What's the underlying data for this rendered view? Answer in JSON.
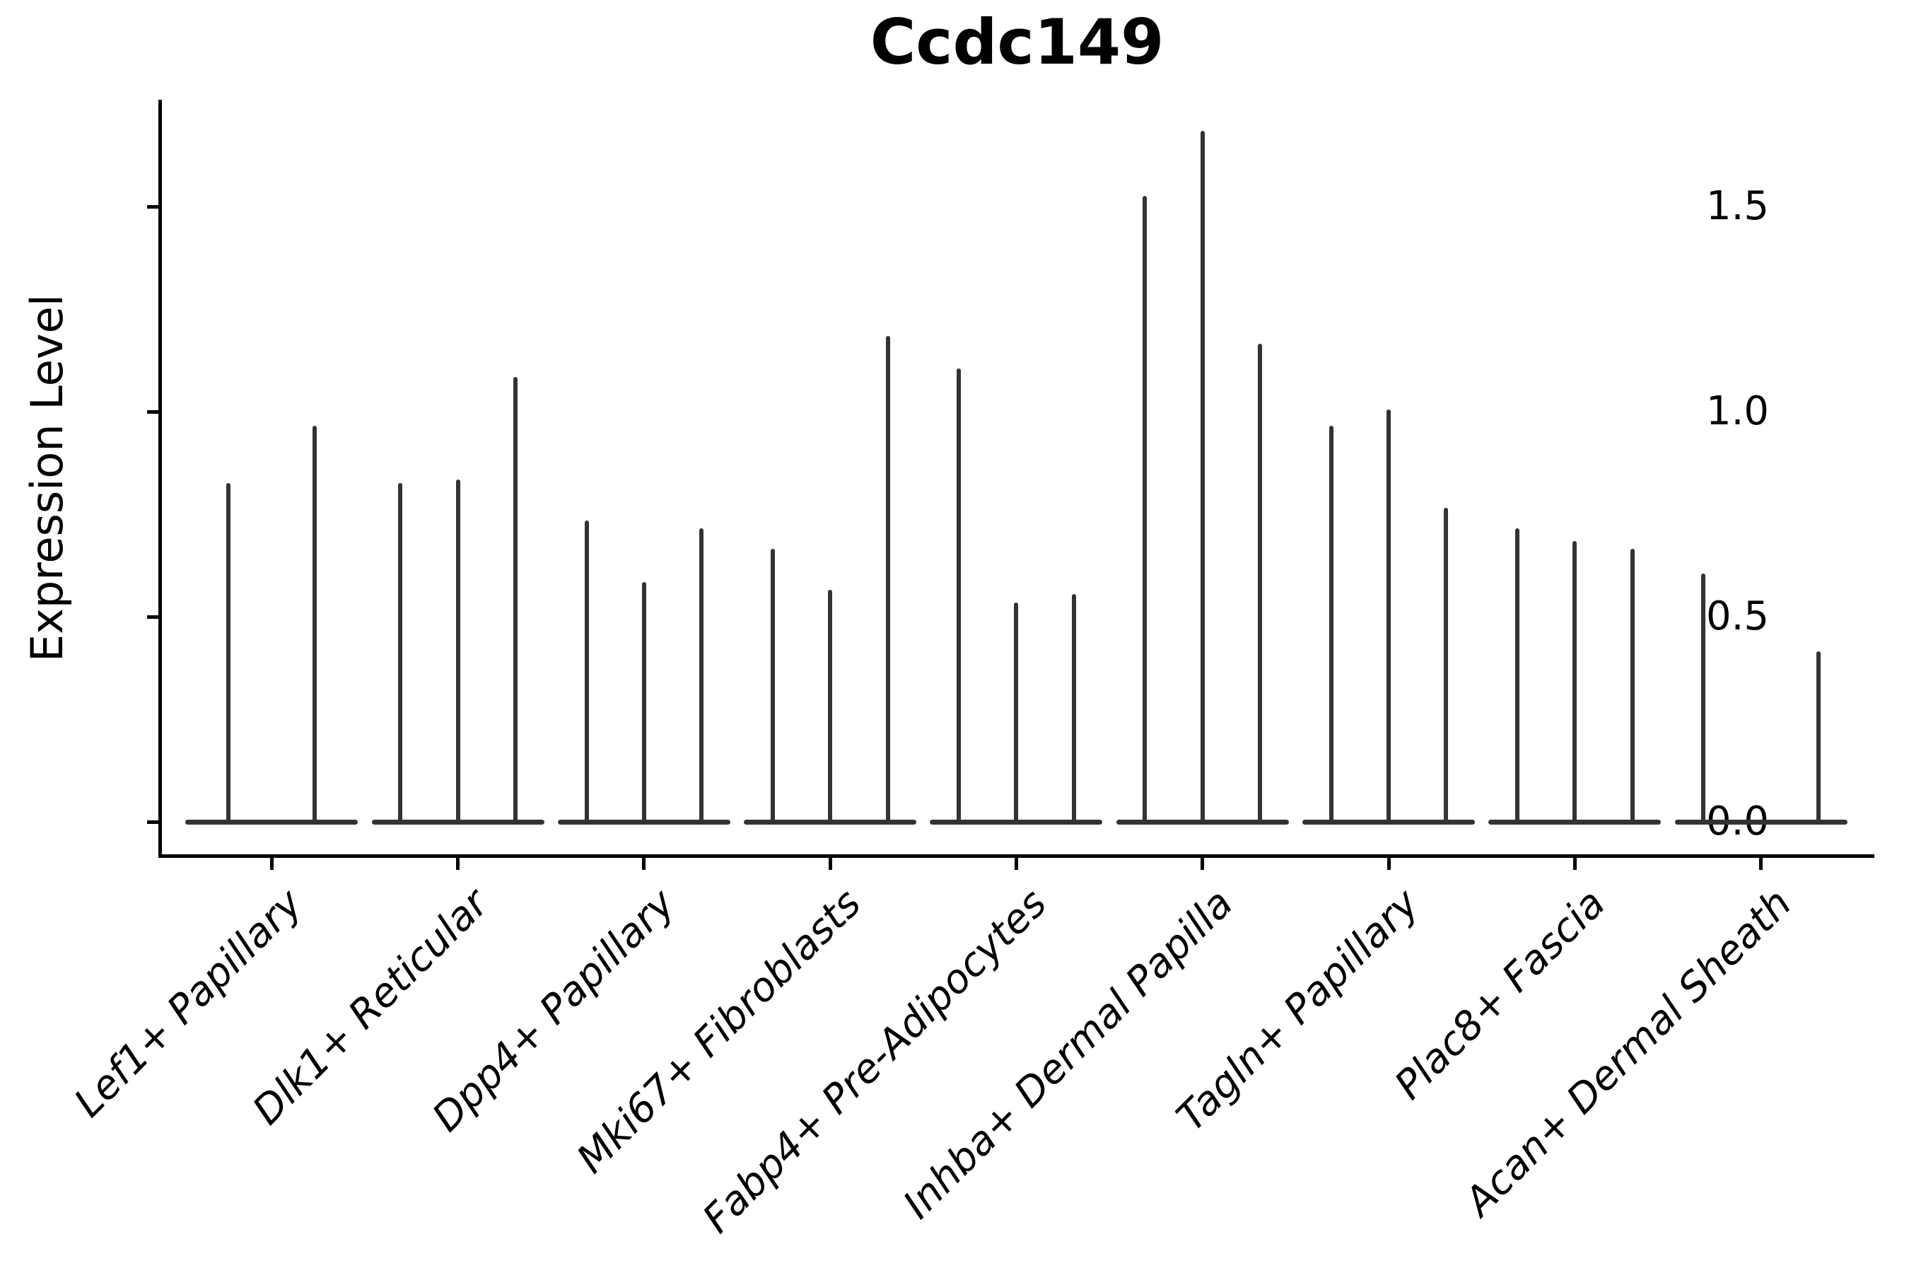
{
  "figure": {
    "background": "#ffffff",
    "axis_color": "#000000",
    "violin_color": "#333333",
    "text_color": "#000000"
  },
  "chart_data": {
    "type": "violin",
    "title": "Ccdc149",
    "xlabel": "",
    "ylabel": "Expression Level",
    "ytick_labels": [
      "0.0",
      "0.5",
      "1.0",
      "1.5"
    ],
    "ytick_values": [
      0.0,
      0.5,
      1.0,
      1.5
    ],
    "ylim": [
      -0.08,
      1.76
    ],
    "grid": false,
    "legend_position": "none",
    "categories": [
      "Lef1+ Papillary",
      "Dlk1+ Reticular",
      "Dpp4+ Papillary",
      "Mki67+ Fibroblasts",
      "Fabp4+ Pre-Adipocytes",
      "Inhba+ Dermal Papilla",
      "Tagln+ Papillary",
      "Plac8+ Fascia",
      "Acan+ Dermal Sheath"
    ],
    "groups": [
      {
        "category": "Lef1+ Papillary",
        "slots": 2,
        "violins": [
          {
            "slot": 0,
            "max": 0.82
          },
          {
            "slot": 1,
            "max": 0.96
          }
        ]
      },
      {
        "category": "Dlk1+ Reticular",
        "slots": 3,
        "violins": [
          {
            "slot": 0,
            "max": 0.82
          },
          {
            "slot": 1,
            "max": 0.83
          },
          {
            "slot": 2,
            "max": 1.08
          }
        ]
      },
      {
        "category": "Dpp4+ Papillary",
        "slots": 3,
        "violins": [
          {
            "slot": 0,
            "max": 0.73
          },
          {
            "slot": 1,
            "max": 0.58
          },
          {
            "slot": 2,
            "max": 0.71
          }
        ]
      },
      {
        "category": "Mki67+ Fibroblasts",
        "slots": 3,
        "violins": [
          {
            "slot": 0,
            "max": 0.66
          },
          {
            "slot": 1,
            "max": 0.56
          },
          {
            "slot": 2,
            "max": 1.18
          }
        ]
      },
      {
        "category": "Fabp4+ Pre-Adipocytes",
        "slots": 3,
        "violins": [
          {
            "slot": 0,
            "max": 1.1
          },
          {
            "slot": 1,
            "max": 0.53
          },
          {
            "slot": 2,
            "max": 0.55
          }
        ]
      },
      {
        "category": "Inhba+ Dermal Papilla",
        "slots": 3,
        "violins": [
          {
            "slot": 0,
            "max": 1.52
          },
          {
            "slot": 1,
            "max": 1.68
          },
          {
            "slot": 2,
            "max": 1.16
          }
        ]
      },
      {
        "category": "Tagln+ Papillary",
        "slots": 3,
        "violins": [
          {
            "slot": 0,
            "max": 0.96
          },
          {
            "slot": 1,
            "max": 1.0
          },
          {
            "slot": 2,
            "max": 0.76
          }
        ]
      },
      {
        "category": "Plac8+ Fascia",
        "slots": 3,
        "violins": [
          {
            "slot": 0,
            "max": 0.71
          },
          {
            "slot": 1,
            "max": 0.68
          },
          {
            "slot": 2,
            "max": 0.66
          }
        ]
      },
      {
        "category": "Acan+ Dermal Sheath",
        "slots": 3,
        "violins": [
          {
            "slot": 0,
            "max": 0.6
          },
          {
            "slot": 2,
            "max": 0.41
          }
        ]
      }
    ]
  }
}
